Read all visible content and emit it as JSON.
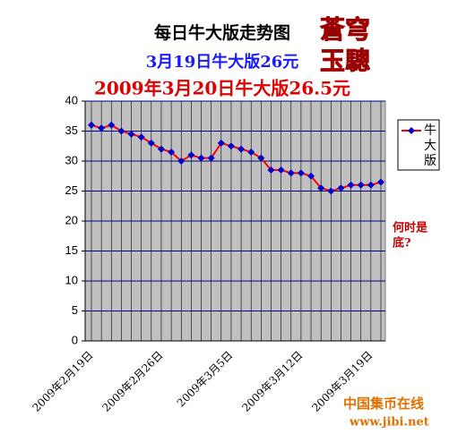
{
  "chart_data": {
    "type": "line",
    "title": "每日牛大版走势图",
    "subtitle": "3月19日牛大版26元",
    "subtitle2": "2009年3月20日牛大版26.5元",
    "logo": [
      "蒼穹",
      "玉驄"
    ],
    "annotation": [
      "何时是",
      "底?"
    ],
    "watermark": [
      "中国集币在线",
      "www.jibi.net"
    ],
    "categories": [
      "2009年2月19日",
      null,
      null,
      null,
      null,
      null,
      null,
      "2009年2月26日",
      null,
      null,
      null,
      null,
      null,
      null,
      "2009年3月5日",
      null,
      null,
      null,
      null,
      null,
      null,
      "2009年3月12日",
      null,
      null,
      null,
      null,
      null,
      null,
      "2009年3月19日",
      null
    ],
    "series": [
      {
        "name": "牛大版",
        "color": "#ff0000",
        "marker_color": "#0000cc",
        "values": [
          36,
          35.5,
          36,
          35,
          34.5,
          34,
          33,
          32,
          31.5,
          30,
          31,
          30.5,
          30.5,
          33,
          32.5,
          32,
          31.5,
          30.5,
          28.5,
          28.5,
          28,
          28,
          27.5,
          25.5,
          25,
          25.5,
          26,
          26,
          26,
          26.5
        ]
      }
    ],
    "ylim": [
      0,
      40
    ],
    "yticks": [
      0,
      5,
      10,
      15,
      20,
      25,
      30,
      35,
      40
    ],
    "grid": true
  }
}
